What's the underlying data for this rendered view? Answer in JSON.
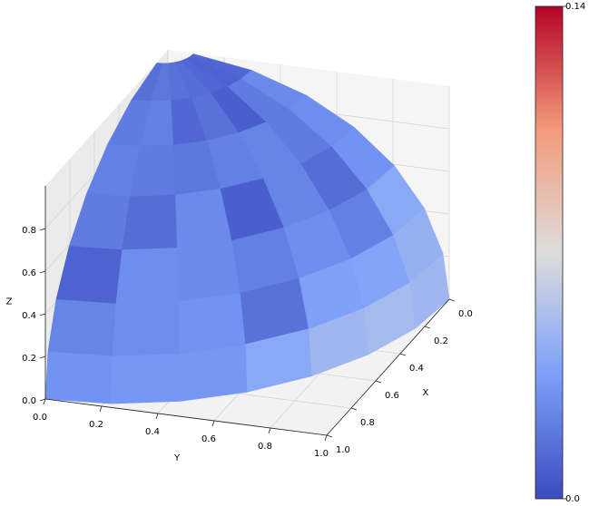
{
  "chart_data": {
    "type": "surface",
    "colormap": "coolwarm",
    "xlabel": "X",
    "ylabel": "Y",
    "zlabel": "Z",
    "xlim": [
      0,
      1
    ],
    "ylim": [
      0,
      1
    ],
    "zlim": [
      0,
      1
    ],
    "xticks": [
      {
        "value": 0,
        "label": "0.0"
      },
      0.2,
      0.4,
      0.6,
      0.8,
      {
        "value": 1,
        "label": "1.0"
      }
    ],
    "yticks": [
      {
        "value": 0,
        "label": "0.0"
      },
      0.2,
      0.4,
      0.6,
      0.8,
      {
        "value": 1,
        "label": "1.0"
      }
    ],
    "zticks": [
      {
        "value": 0,
        "label": "0.0"
      },
      0.2,
      0.4,
      0.6,
      0.8
    ],
    "grid": true,
    "face_values": [
      [
        0.015,
        0.018,
        0.016,
        0.014,
        0.012,
        0.01,
        0.012
      ],
      [
        0.02,
        0.022,
        0.012,
        0.016,
        0.008,
        0.02,
        0.026
      ],
      [
        0.022,
        0.02,
        0.018,
        0.022,
        0.024,
        0.02,
        0.028
      ],
      [
        0.02,
        0.014,
        0.026,
        0.008,
        0.024,
        0.014,
        0.03
      ],
      [
        0.01,
        0.028,
        0.026,
        0.022,
        0.028,
        0.022,
        0.04
      ],
      [
        0.024,
        0.028,
        0.03,
        0.016,
        0.036,
        0.038,
        0.044
      ],
      [
        0.03,
        0.032,
        0.032,
        0.04,
        0.048,
        0.05,
        0.048
      ]
    ],
    "colorbar": {
      "lim": [
        0,
        0.14
      ],
      "ticks": [
        {
          "value": 0,
          "label": "0.0"
        },
        0.14
      ]
    }
  }
}
